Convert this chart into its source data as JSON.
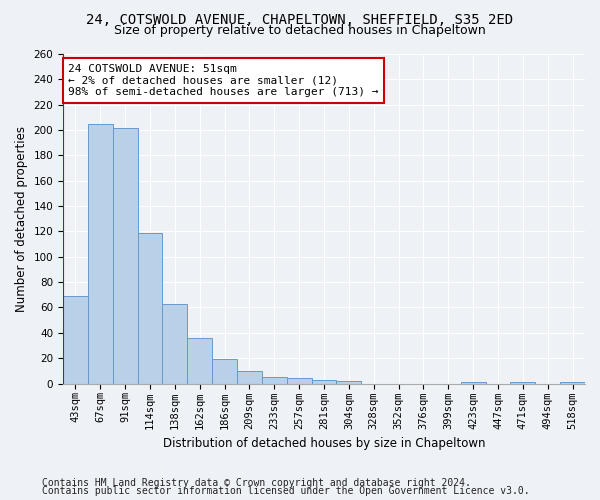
{
  "title1": "24, COTSWOLD AVENUE, CHAPELTOWN, SHEFFIELD, S35 2ED",
  "title2": "Size of property relative to detached houses in Chapeltown",
  "xlabel": "Distribution of detached houses by size in Chapeltown",
  "ylabel": "Number of detached properties",
  "categories": [
    "43sqm",
    "67sqm",
    "91sqm",
    "114sqm",
    "138sqm",
    "162sqm",
    "186sqm",
    "209sqm",
    "233sqm",
    "257sqm",
    "281sqm",
    "304sqm",
    "328sqm",
    "352sqm",
    "376sqm",
    "399sqm",
    "423sqm",
    "447sqm",
    "471sqm",
    "494sqm",
    "518sqm"
  ],
  "values": [
    69,
    205,
    202,
    119,
    63,
    36,
    19,
    10,
    5,
    4,
    3,
    2,
    0,
    0,
    0,
    0,
    1,
    0,
    1,
    0,
    1
  ],
  "bar_color": "#b8d0e8",
  "bar_edge_color": "#6699cc",
  "highlight_line_color": "#cc0000",
  "annotation_text": "24 COTSWOLD AVENUE: 51sqm\n← 2% of detached houses are smaller (12)\n98% of semi-detached houses are larger (713) →",
  "annotation_box_color": "#ffffff",
  "annotation_box_edge": "#cc0000",
  "ylim": [
    0,
    260
  ],
  "yticks": [
    0,
    20,
    40,
    60,
    80,
    100,
    120,
    140,
    160,
    180,
    200,
    220,
    240,
    260
  ],
  "footer1": "Contains HM Land Registry data © Crown copyright and database right 2024.",
  "footer2": "Contains public sector information licensed under the Open Government Licence v3.0.",
  "background_color": "#eef2f7",
  "grid_color": "#ffffff",
  "title1_fontsize": 10,
  "title2_fontsize": 9,
  "axis_label_fontsize": 8.5,
  "tick_fontsize": 7.5,
  "footer_fontsize": 7,
  "annot_fontsize": 8
}
